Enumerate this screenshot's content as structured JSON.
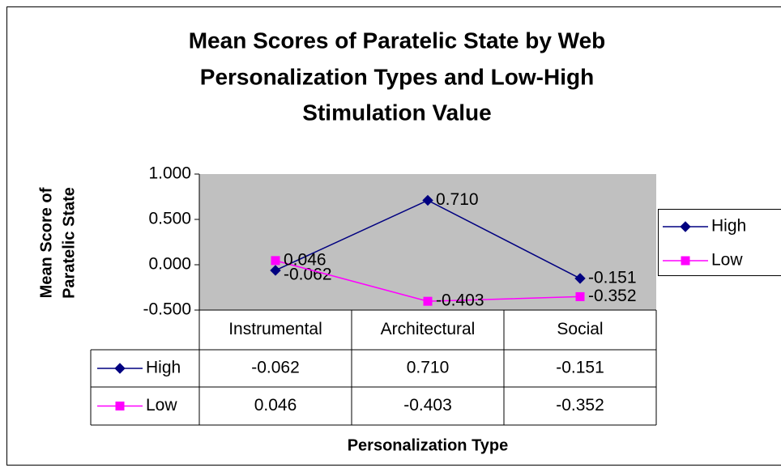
{
  "chart_data": {
    "type": "line",
    "title_lines": [
      "Mean Scores of Paratelic State by Web",
      "Personalization Types and Low-High",
      "Stimulation Value"
    ],
    "y_label_lines": [
      "Mean Score of",
      "Paratelic State"
    ],
    "x_label": "Personalization Type",
    "categories": [
      "Instrumental",
      "Architectural",
      "Social"
    ],
    "series": [
      {
        "name": "High",
        "color": "#000080",
        "marker": "diamond",
        "values": [
          -0.062,
          0.71,
          -0.151
        ],
        "value_labels": [
          "-0.062",
          "0.710",
          "-0.151"
        ]
      },
      {
        "name": "Low",
        "color": "#ff00ff",
        "marker": "square",
        "values": [
          0.046,
          -0.403,
          -0.352
        ],
        "value_labels": [
          "0.046",
          "-0.403",
          "-0.352"
        ]
      }
    ],
    "ylim": [
      -0.5,
      1.0
    ],
    "yticks": [
      {
        "value": -0.5,
        "label": "-0.500"
      },
      {
        "value": 0,
        "label": "0.000"
      },
      {
        "value": 0.5,
        "label": "0.500"
      },
      {
        "value": 1.0,
        "label": "1.000"
      }
    ],
    "plot_background": "#c0c0c0",
    "legend": "right",
    "data_table": true
  }
}
